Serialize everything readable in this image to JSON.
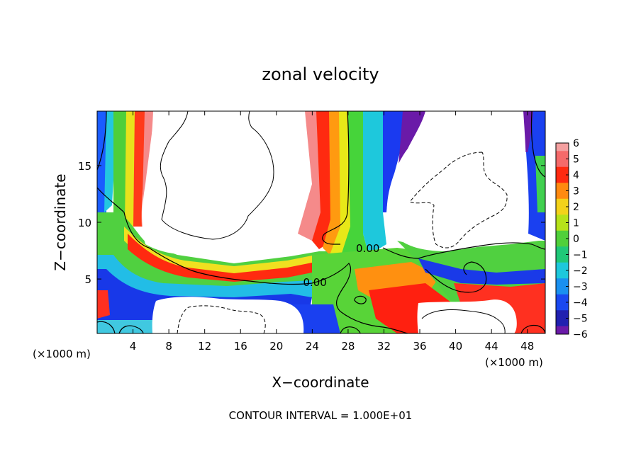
{
  "chart_data": {
    "type": "heatmap",
    "title": "zonal velocity",
    "xlabel": "X−coordinate",
    "ylabel": "Z−coordinate",
    "x_unit_label": "(×1000 m)",
    "x_unit_label_right": "(×1000 m)",
    "footer": "CONTOUR INTERVAL = 1.000E+01",
    "xlim": [
      0,
      50
    ],
    "ylim": [
      0.2,
      19.8
    ],
    "x_ticks": [
      4,
      8,
      12,
      16,
      20,
      24,
      28,
      32,
      36,
      40,
      44,
      48
    ],
    "y_ticks": [
      5,
      10,
      15
    ],
    "colorbar": {
      "min": -6,
      "max": 6,
      "ticks": [
        6,
        5,
        4,
        3,
        2,
        1,
        0,
        -1,
        -2,
        -3,
        -4,
        -5,
        -6
      ],
      "tick_labels": [
        "6",
        "5",
        "4",
        "3",
        "2",
        "1",
        "0",
        "−1",
        "−2",
        "−3",
        "−4",
        "−5",
        "−6"
      ]
    },
    "contour_labels": [
      {
        "text": "0.00",
        "x": 30.2,
        "z": 7.7
      },
      {
        "text": "0.00",
        "x": 24.3,
        "z": 4.7
      }
    ],
    "grid": false,
    "legend": "right"
  }
}
